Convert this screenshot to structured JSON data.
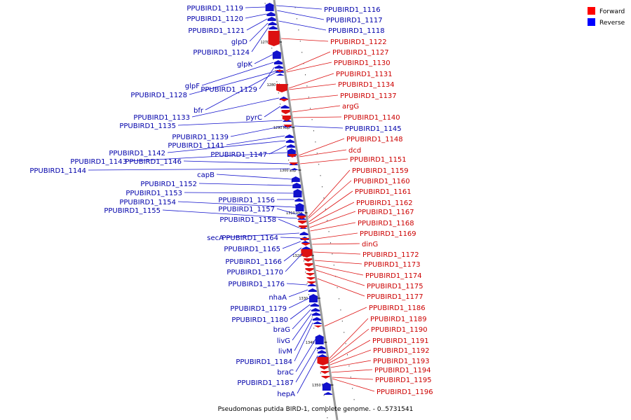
{
  "caption": "Pseudomonas putida BIRD-1, complete genome. - 0..5731541",
  "legend": [
    {
      "label": "Forward",
      "color": "#ff0000"
    },
    {
      "label": "Reverse",
      "color": "#0000ff"
    }
  ],
  "colors": {
    "forward": "#dd1111",
    "reverse": "#1111cc",
    "forward_text": "#cc0000",
    "reverse_text": "#0000aa",
    "axis": "#999999"
  },
  "ticks": [
    "1270 kbp",
    "1280 kbp",
    "1290 kbp",
    "1300 kbp",
    "1310 kbp",
    "1320 kbp",
    "1330 kbp",
    "1340 kbp",
    "1350 kbp"
  ],
  "reverse_genes": [
    "PPUBIRD1_1119",
    "PPUBIRD1_1120",
    "PPUBIRD1_1121",
    "glpD",
    "PPUBIRD1_1124",
    "glpK",
    "glpF",
    "PPUBIRD1_1129",
    "PPUBIRD1_1128",
    "bfr",
    "PPUBIRD1_1133",
    "pyrC",
    "PPUBIRD1_1135",
    "PPUBIRD1_1139",
    "PPUBIRD1_1141",
    "PPUBIRD1_1142",
    "PPUBIRD1_1147",
    "PPUBIRD1_1143",
    "PPUBIRD1_1146",
    "PPUBIRD1_1144",
    "capB",
    "PPUBIRD1_1152",
    "PPUBIRD1_1153",
    "PPUBIRD1_1156",
    "PPUBIRD1_1154",
    "PPUBIRD1_1157",
    "PPUBIRD1_1155",
    "PPUBIRD1_1158",
    "secA",
    "PPUBIRD1_1164",
    "PPUBIRD1_1165",
    "PPUBIRD1_1166",
    "PPUBIRD1_1170",
    "PPUBIRD1_1176",
    "nhaA",
    "PPUBIRD1_1179",
    "PPUBIRD1_1180",
    "braG",
    "livG",
    "livM",
    "PPUBIRD1_1184",
    "braC",
    "PPUBIRD1_1187",
    "hepA"
  ],
  "right_genes": [
    "PPUBIRD1_1116",
    "PPUBIRD1_1117",
    "PPUBIRD1_1118",
    "PPUBIRD1_1122",
    "PPUBIRD1_1127",
    "PPUBIRD1_1130",
    "PPUBIRD1_1131",
    "PPUBIRD1_1134",
    "PPUBIRD1_1137",
    "argG",
    "PPUBIRD1_1140",
    "PPUBIRD1_1145",
    "PPUBIRD1_1148",
    "dcd",
    "PPUBIRD1_1151",
    "PPUBIRD1_1159",
    "PPUBIRD1_1160",
    "PPUBIRD1_1161",
    "PPUBIRD1_1162",
    "PPUBIRD1_1167",
    "PPUBIRD1_1168",
    "PPUBIRD1_1169",
    "dinG",
    "PPUBIRD1_1172",
    "PPUBIRD1_1173",
    "PPUBIRD1_1174",
    "PPUBIRD1_1175",
    "PPUBIRD1_1177",
    "PPUBIRD1_1186",
    "PPUBIRD1_1189",
    "PPUBIRD1_1190",
    "PPUBIRD1_1191",
    "PPUBIRD1_1192",
    "PPUBIRD1_1193",
    "PPUBIRD1_1194",
    "PPUBIRD1_1195",
    "PPUBIRD1_1196"
  ],
  "right_strand": [
    "reverse",
    "reverse",
    "reverse",
    "forward",
    "forward",
    "forward",
    "forward",
    "forward",
    "forward",
    "forward",
    "forward",
    "reverse",
    "forward",
    "forward",
    "forward",
    "forward",
    "forward",
    "forward",
    "forward",
    "forward",
    "forward",
    "forward",
    "forward",
    "forward",
    "forward",
    "forward",
    "forward",
    "forward",
    "forward",
    "forward",
    "forward",
    "forward",
    "forward",
    "forward",
    "forward",
    "forward",
    "forward"
  ]
}
